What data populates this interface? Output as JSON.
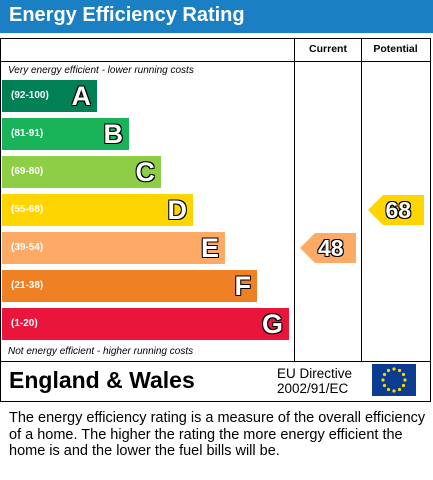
{
  "header": {
    "title": "Energy Efficiency Rating"
  },
  "columns": {
    "current": "Current",
    "potential": "Potential"
  },
  "notes": {
    "top": "Very energy efficient - lower running costs",
    "bottom": "Not energy efficient - higher running costs"
  },
  "footer": {
    "region": "England & Wales",
    "directive_line1": "EU Directive",
    "directive_line2": "2002/91/EC"
  },
  "description": "The energy efficiency rating is a measure of the overall efficiency of a home. The higher the rating the more energy efficient the home is and the lower the fuel bills will be.",
  "chart_data": {
    "type": "bar",
    "title": "Energy Efficiency Rating",
    "bands": [
      {
        "range": "(92-100)",
        "letter": "A",
        "color": "#008054"
      },
      {
        "range": "(81-91)",
        "letter": "B",
        "color": "#19b459"
      },
      {
        "range": "(69-80)",
        "letter": "C",
        "color": "#8dce46"
      },
      {
        "range": "(55-68)",
        "letter": "D",
        "color": "#ffd500"
      },
      {
        "range": "(39-54)",
        "letter": "E",
        "color": "#fcaa65"
      },
      {
        "range": "(21-38)",
        "letter": "F",
        "color": "#ef8023"
      },
      {
        "range": "(1-20)",
        "letter": "G",
        "color": "#e9153b"
      }
    ],
    "current": {
      "value": 48,
      "band": "E"
    },
    "potential": {
      "value": 68,
      "band": "D"
    }
  }
}
